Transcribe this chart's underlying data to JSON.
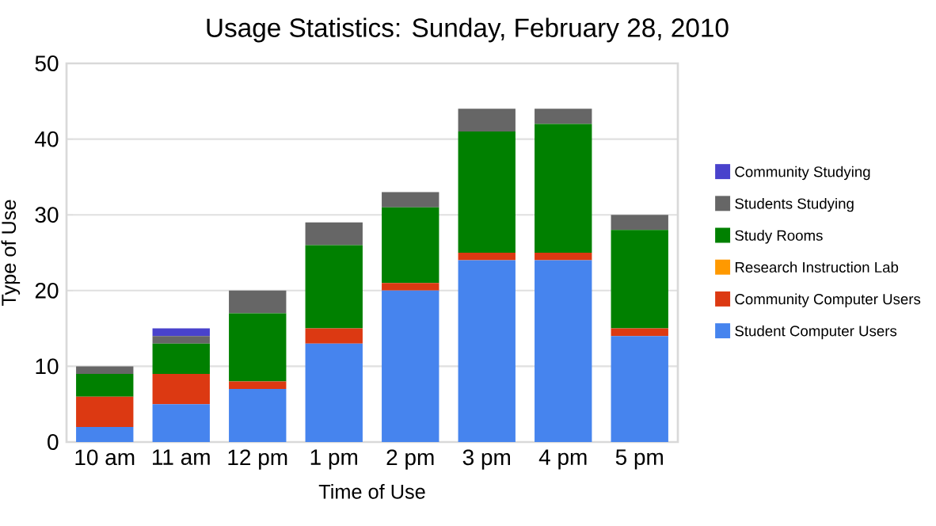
{
  "chart_data": {
    "type": "bar",
    "stacked": true,
    "title": "Usage Statistics: Sunday, February 28, 2010",
    "xlabel": "Time of Use",
    "ylabel": "Type of Use",
    "categories": [
      "10 am",
      "11 am",
      "12 pm",
      "1 pm",
      "2 pm",
      "3 pm",
      "4 pm",
      "5 pm"
    ],
    "series": [
      {
        "name": "Student Computer Users",
        "color": "#4684ee",
        "values": [
          2,
          5,
          7,
          13,
          20,
          24,
          24,
          14
        ]
      },
      {
        "name": "Community Computer Users",
        "color": "#dc3912",
        "values": [
          4,
          4,
          1,
          2,
          1,
          1,
          1,
          1
        ]
      },
      {
        "name": "Research Instruction Lab",
        "color": "#ff9900",
        "values": [
          0,
          0,
          0,
          0,
          0,
          0,
          0,
          0
        ]
      },
      {
        "name": "Study Rooms",
        "color": "#008000",
        "values": [
          3,
          4,
          9,
          11,
          10,
          16,
          17,
          13
        ]
      },
      {
        "name": "Students Studying",
        "color": "#666666",
        "values": [
          1,
          1,
          3,
          3,
          2,
          3,
          2,
          2
        ]
      },
      {
        "name": "Community Studying",
        "color": "#4942cc",
        "values": [
          0,
          1,
          0,
          0,
          0,
          0,
          0,
          0
        ]
      }
    ],
    "ylim": [
      0,
      50
    ],
    "yticks": [
      0,
      10,
      20,
      30,
      40,
      50
    ],
    "grid": "y",
    "legend": "right"
  }
}
